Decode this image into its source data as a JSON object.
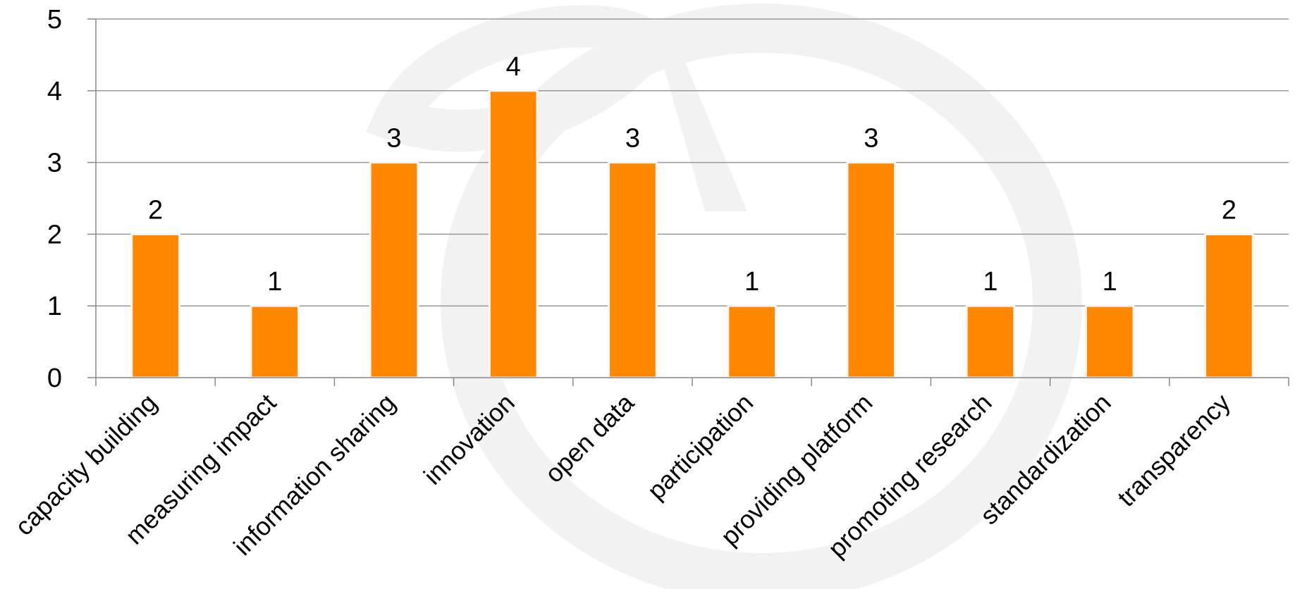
{
  "chart_data": {
    "type": "bar",
    "categories": [
      "capacity building",
      "measuring impact",
      "information sharing",
      "innovation",
      "open data",
      "participation",
      "providing platform",
      "promoting research",
      "standardization",
      "transparency"
    ],
    "values": [
      2,
      1,
      3,
      4,
      3,
      1,
      3,
      1,
      1,
      2
    ],
    "ylim": [
      0,
      5
    ],
    "yticks": [
      "0",
      "1",
      "2",
      "3",
      "4",
      "5"
    ],
    "grid": true,
    "show_data_labels": true,
    "legend": "none",
    "title": "",
    "xlabel": "",
    "ylabel": "",
    "colors": {
      "bar": "#FF8800",
      "bar_edge": "#F5F5F5",
      "grid": "#999999",
      "axis": "#888888",
      "watermark": "#F2F2F2"
    }
  }
}
